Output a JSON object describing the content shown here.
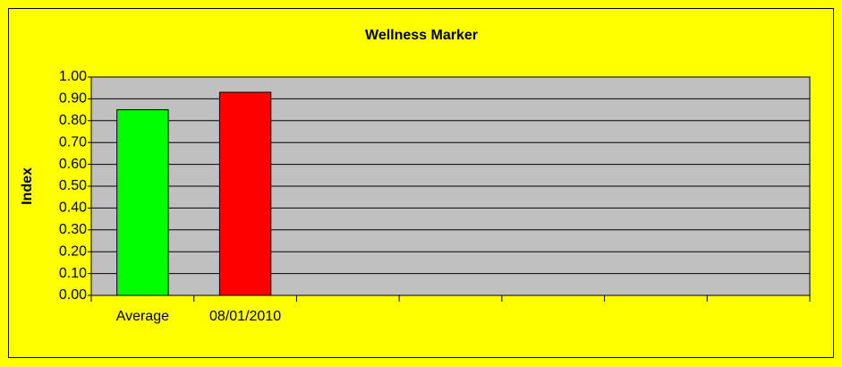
{
  "chart_data": {
    "type": "bar",
    "title": "Wellness Marker",
    "ylabel": "Index",
    "categories": [
      "Average",
      "08/01/2010",
      null,
      null,
      null,
      null,
      null
    ],
    "values": [
      0.85,
      0.93,
      null,
      null,
      null,
      null,
      null
    ],
    "colors": [
      "#00ff00",
      "#ff0000",
      null,
      null,
      null,
      null,
      null
    ],
    "ylim": [
      0,
      1
    ],
    "yticks": [
      {
        "value": 0,
        "label": "0.00"
      },
      {
        "value": 0.1,
        "label": "0.10"
      },
      {
        "value": 0.2,
        "label": "0.20"
      },
      {
        "value": 0.3,
        "label": "0.30"
      },
      {
        "value": 0.4,
        "label": "0.40"
      },
      {
        "value": 0.5,
        "label": "0.50"
      },
      {
        "value": 0.6,
        "label": "0.60"
      },
      {
        "value": 0.7,
        "label": "0.70"
      },
      {
        "value": 0.8,
        "label": "0.80"
      },
      {
        "value": 0.9,
        "label": "0.90"
      },
      {
        "value": 1,
        "label": "1.00"
      }
    ],
    "grid": true
  }
}
